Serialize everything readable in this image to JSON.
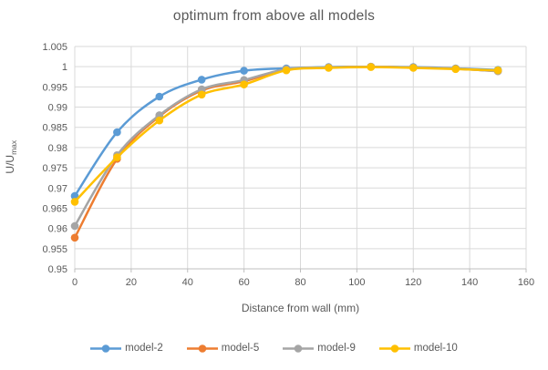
{
  "title": "optimum from above all models",
  "colors": {
    "gridline": "#D9D9D9",
    "axis_line": "#BFBFBF",
    "text": "#595959"
  },
  "chart_data": {
    "type": "line",
    "title": "optimum from above all models",
    "xlabel": "Distance from wall (mm)",
    "ylabel": "U/U_max",
    "ylabel_main": "U/U",
    "ylabel_sub": "max",
    "grid": true,
    "legend_position": "bottom",
    "xlim": [
      0,
      160
    ],
    "ylim": [
      0.95,
      1.005
    ],
    "xticks": [
      0,
      20,
      40,
      60,
      80,
      100,
      120,
      140,
      160
    ],
    "yticks": [
      1.005,
      1.0,
      0.995,
      0.99,
      0.985,
      0.98,
      0.975,
      0.97,
      0.965,
      0.96,
      0.955,
      0.95
    ],
    "ytick_labels": [
      "1.005",
      "1",
      "0.995",
      "0.99",
      "0.985",
      "0.98",
      "0.975",
      "0.97",
      "0.965",
      "0.96",
      "0.955",
      "0.95"
    ],
    "x": [
      0,
      15,
      30,
      45,
      60,
      75,
      90,
      105,
      120,
      135,
      150
    ],
    "series": [
      {
        "name": "model-2",
        "color": "#5B9BD5",
        "values": [
          0.968,
          0.9838,
          0.9926,
          0.9968,
          0.999,
          0.9996,
          0.9999,
          1.0,
          0.9999,
          0.9996,
          0.9992
        ]
      },
      {
        "name": "model-5",
        "color": "#ED7D31",
        "values": [
          0.9577,
          0.9772,
          0.9877,
          0.9941,
          0.9964,
          0.9993,
          0.9998,
          1.0,
          0.9998,
          0.9995,
          0.9989
        ]
      },
      {
        "name": "model-9",
        "color": "#A5A5A5",
        "values": [
          0.9606,
          0.9781,
          0.988,
          0.9944,
          0.9967,
          0.9994,
          0.9998,
          1.0,
          0.9998,
          0.9995,
          0.9989
        ]
      },
      {
        "name": "model-10",
        "color": "#FFC000",
        "values": [
          0.9666,
          0.9776,
          0.9867,
          0.9931,
          0.9956,
          0.9991,
          0.9997,
          0.9999,
          0.9997,
          0.9994,
          0.9991
        ]
      }
    ]
  }
}
